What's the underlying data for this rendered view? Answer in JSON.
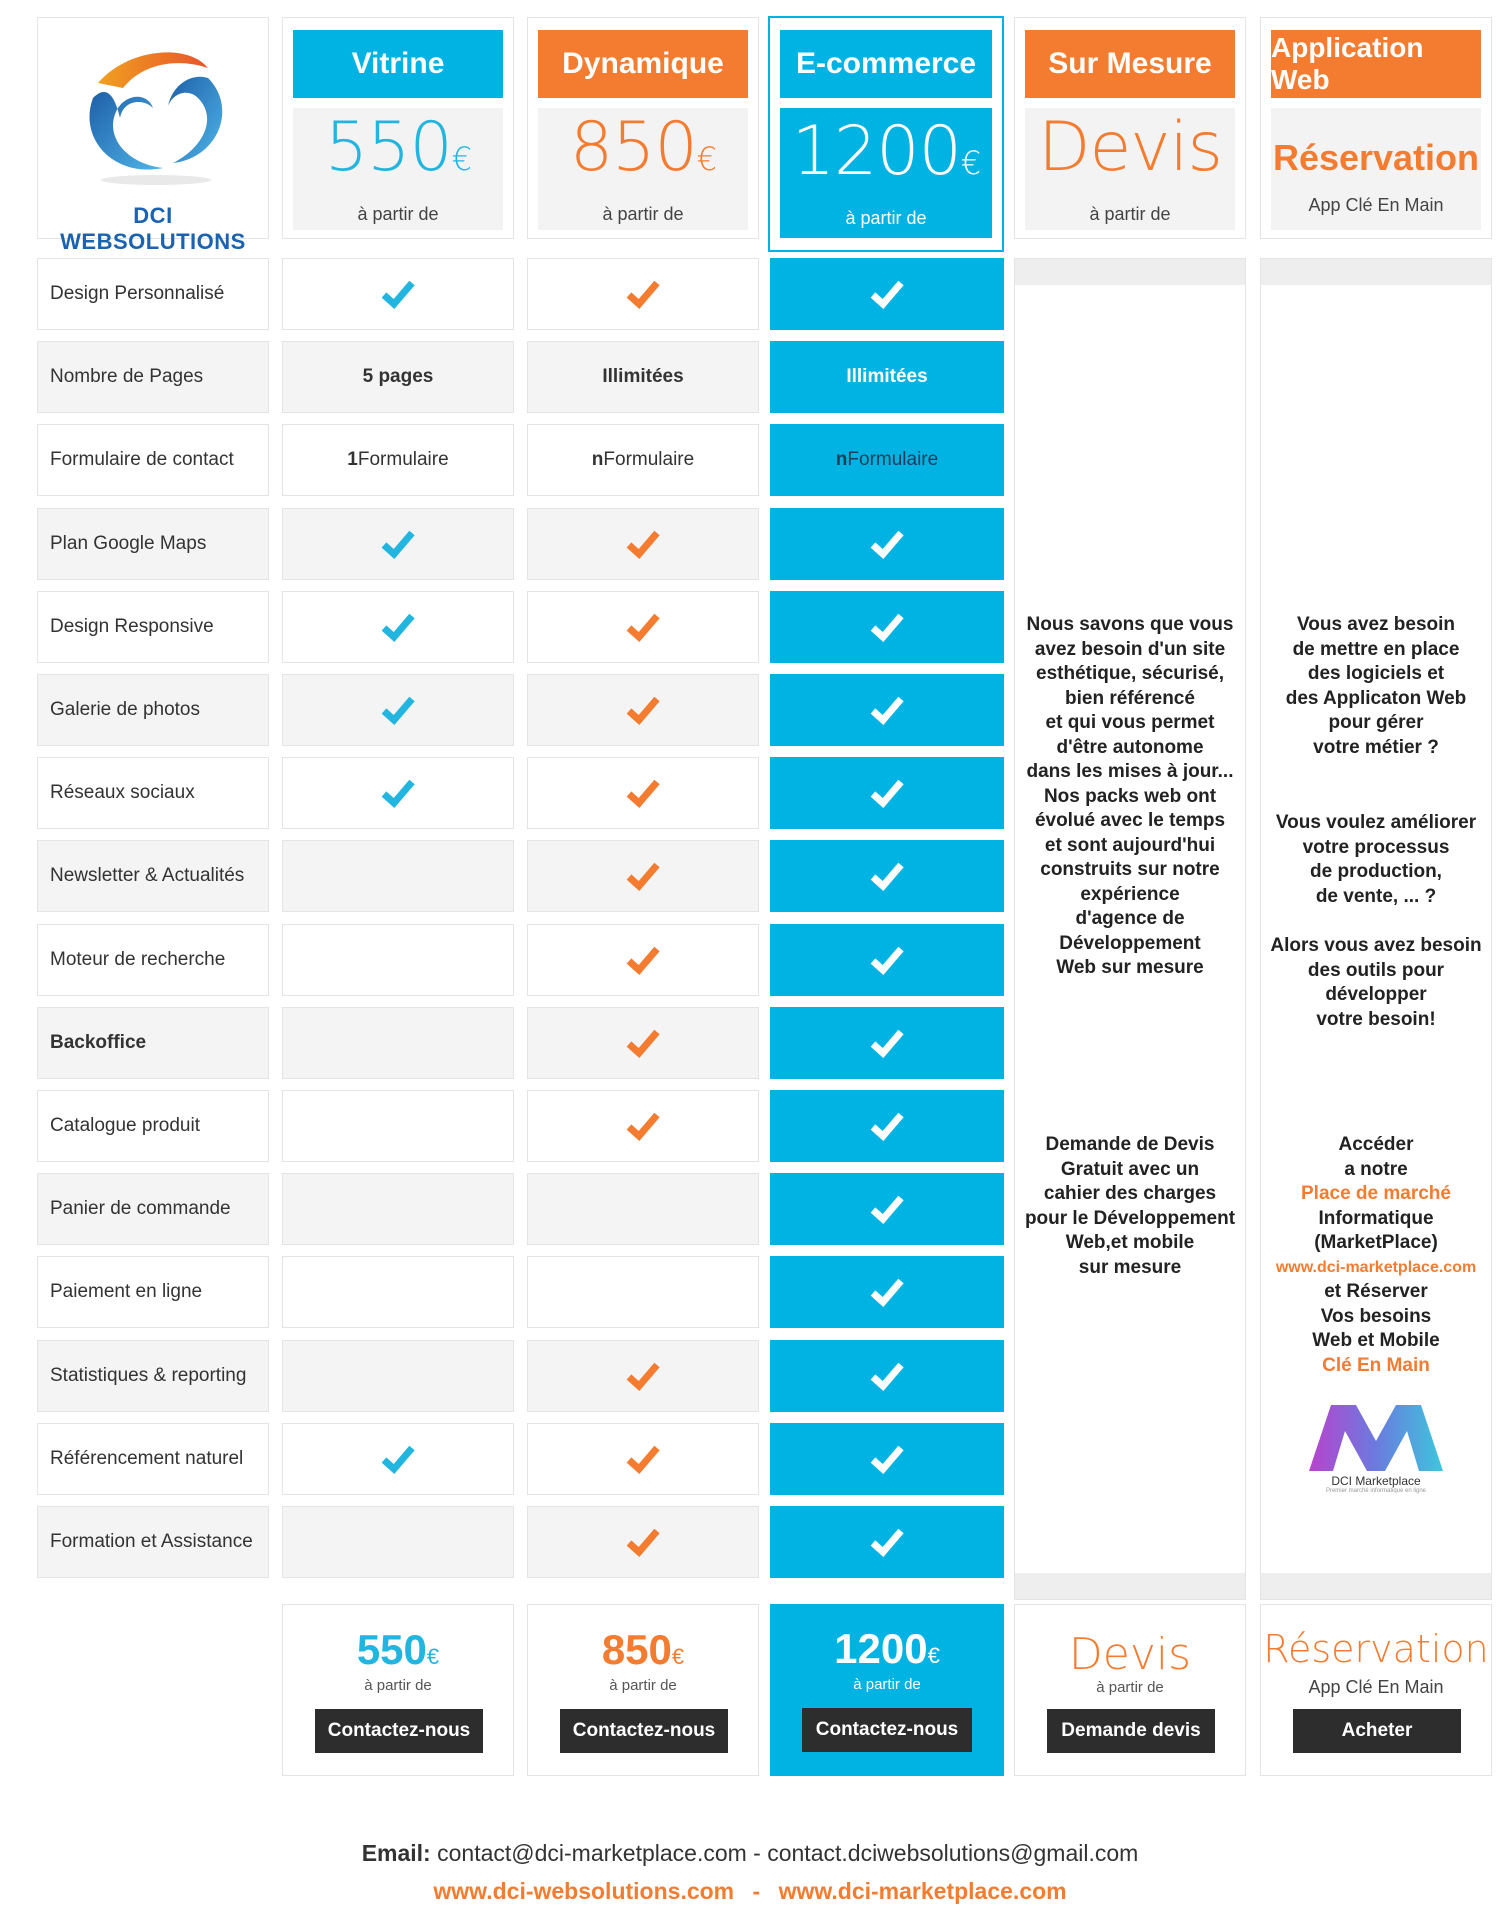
{
  "brand": {
    "name": "DCI WEBSOLUTIONS"
  },
  "plans": [
    {
      "name": "Vitrine",
      "price": "550",
      "currency": "€",
      "note": "à partir de",
      "button": "Contactez-nous"
    },
    {
      "name": "Dynamique",
      "price": "850",
      "currency": "€",
      "note": "à partir de",
      "button": "Contactez-nous"
    },
    {
      "name": "E-commerce",
      "price": "1200",
      "currency": "€",
      "note": "à partir de",
      "button": "Contactez-nous"
    },
    {
      "name": "Sur Mesure",
      "price": "Devis",
      "currency": "",
      "note": "à partir de",
      "button": "Demande devis"
    },
    {
      "name": "Application Web",
      "price": "Réservation",
      "currency": "",
      "note": "App Clé En Main",
      "button": "Acheter"
    }
  ],
  "features": [
    {
      "label": "Design Personnalisé",
      "vitrine": "check",
      "dynamique": "check",
      "ecommerce": "check"
    },
    {
      "label": "Nombre de Pages",
      "vitrine": "5 pages",
      "dynamique": "Illimitées",
      "ecommerce": "Illimitées"
    },
    {
      "label": "Formulaire de contact",
      "vitrine": {
        "n": "1",
        "t": " Formulaire"
      },
      "dynamique": {
        "n": "n",
        "t": " Formulaire"
      },
      "ecommerce": {
        "n": "n",
        "t": " Formulaire"
      }
    },
    {
      "label": "Plan Google Maps",
      "vitrine": "check",
      "dynamique": "check",
      "ecommerce": "check"
    },
    {
      "label": "Design Responsive",
      "vitrine": "check",
      "dynamique": "check",
      "ecommerce": "check"
    },
    {
      "label": "Galerie de photos",
      "vitrine": "check",
      "dynamique": "check",
      "ecommerce": "check"
    },
    {
      "label": "Réseaux sociaux",
      "vitrine": "check",
      "dynamique": "check",
      "ecommerce": "check"
    },
    {
      "label": "Newsletter & Actualités",
      "vitrine": "",
      "dynamique": "check",
      "ecommerce": "check"
    },
    {
      "label": "Moteur de recherche",
      "vitrine": "",
      "dynamique": "check",
      "ecommerce": "check"
    },
    {
      "label": "Backoffice",
      "vitrine": "",
      "dynamique": "check",
      "ecommerce": "check"
    },
    {
      "label": "Catalogue produit",
      "vitrine": "",
      "dynamique": "check",
      "ecommerce": "check"
    },
    {
      "label": "Panier de commande",
      "vitrine": "",
      "dynamique": "",
      "ecommerce": "check"
    },
    {
      "label": "Paiement en ligne",
      "vitrine": "",
      "dynamique": "",
      "ecommerce": "check"
    },
    {
      "label": "Statistiques & reporting",
      "vitrine": "",
      "dynamique": "check",
      "ecommerce": "check"
    },
    {
      "label": "Référencement naturel",
      "vitrine": "check",
      "dynamique": "check",
      "ecommerce": "check"
    },
    {
      "label": "Formation et Assistance",
      "vitrine": "",
      "dynamique": "check",
      "ecommerce": "check"
    }
  ],
  "sur_mesure": {
    "intro": [
      "Nous savons que vous",
      "avez besoin d'un site",
      "esthétique, sécurisé,",
      "bien référencé",
      "et qui vous permet",
      "d'être autonome",
      "dans les mises à jour...",
      "Nos packs web ont",
      "évolué avec le temps",
      "et sont aujourd'hui",
      "construits sur notre",
      "expérience",
      "d'agence de",
      "Développement",
      "Web sur mesure"
    ],
    "devis": [
      "Demande de Devis",
      "Gratuit avec un",
      "cahier des charges",
      "pour le Développement",
      "Web,et mobile",
      "sur mesure"
    ]
  },
  "app_web": {
    "intro1": [
      "Vous avez besoin",
      "de mettre en place",
      "des logiciels et",
      "des Applicaton  Web",
      "pour gérer",
      "votre métier ?"
    ],
    "intro2": [
      "Vous voulez améliorer",
      "votre processus",
      "de production,",
      "de vente, ... ?"
    ],
    "intro3": [
      "Alors vous avez besoin",
      "des outils pour",
      "développer",
      "votre besoin!"
    ],
    "market": {
      "l1": "Accéder",
      "l2": "a notre",
      "l3": "Place de marché",
      "l4": "Informatique",
      "l5": "(MarketPlace)",
      "l6": "www.dci-marketplace.com",
      "l7": "et Réserver",
      "l8": "Vos besoins",
      "l9": "Web et Mobile",
      "l10": "Clé En Main"
    },
    "logo_text": "DCI Marketplace",
    "logo_tagline": "Premier marché informatique en ligne"
  },
  "footer": {
    "email_label": "Email:",
    "emails": " contact@dci-marketplace.com - contact.dciwebsolutions@gmail.com",
    "site1": "www.dci-websolutions.com",
    "sep": "-",
    "site2": "www.dci-marketplace.com"
  },
  "colors": {
    "blue": "#00b3e3",
    "orange": "#f47c30",
    "dark": "#2d2d2d"
  }
}
